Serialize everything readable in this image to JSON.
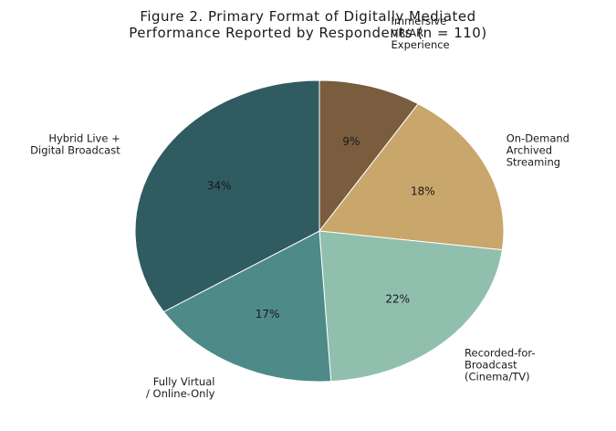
{
  "chart_data": {
    "type": "pie",
    "title_lines": [
      "Figure 2. Primary Format of Digitally Mediated",
      "Performance Reported by Respondents (n = 110)"
    ],
    "start_angle": "top",
    "direction": "clockwise",
    "slices": [
      {
        "label_lines": [
          "Immersive",
          "VR/AR",
          "Experience"
        ],
        "value": 9,
        "value_label": "9%",
        "color": "#7a5c3e"
      },
      {
        "label_lines": [
          "On-Demand",
          "Archived",
          "Streaming"
        ],
        "value": 18,
        "value_label": "18%",
        "color": "#c9a66b"
      },
      {
        "label_lines": [
          "Recorded-for-",
          "Broadcast",
          "(Cinema/TV)"
        ],
        "value": 22,
        "value_label": "22%",
        "color": "#90bfae"
      },
      {
        "label_lines": [
          "Fully Virtual",
          "/ Online-Only"
        ],
        "value": 17,
        "value_label": "17%",
        "color": "#4e8a88"
      },
      {
        "label_lines": [
          "Hybrid Live +",
          "Digital Broadcast"
        ],
        "value": 34,
        "value_label": "34%",
        "color": "#2f5b61"
      }
    ]
  }
}
